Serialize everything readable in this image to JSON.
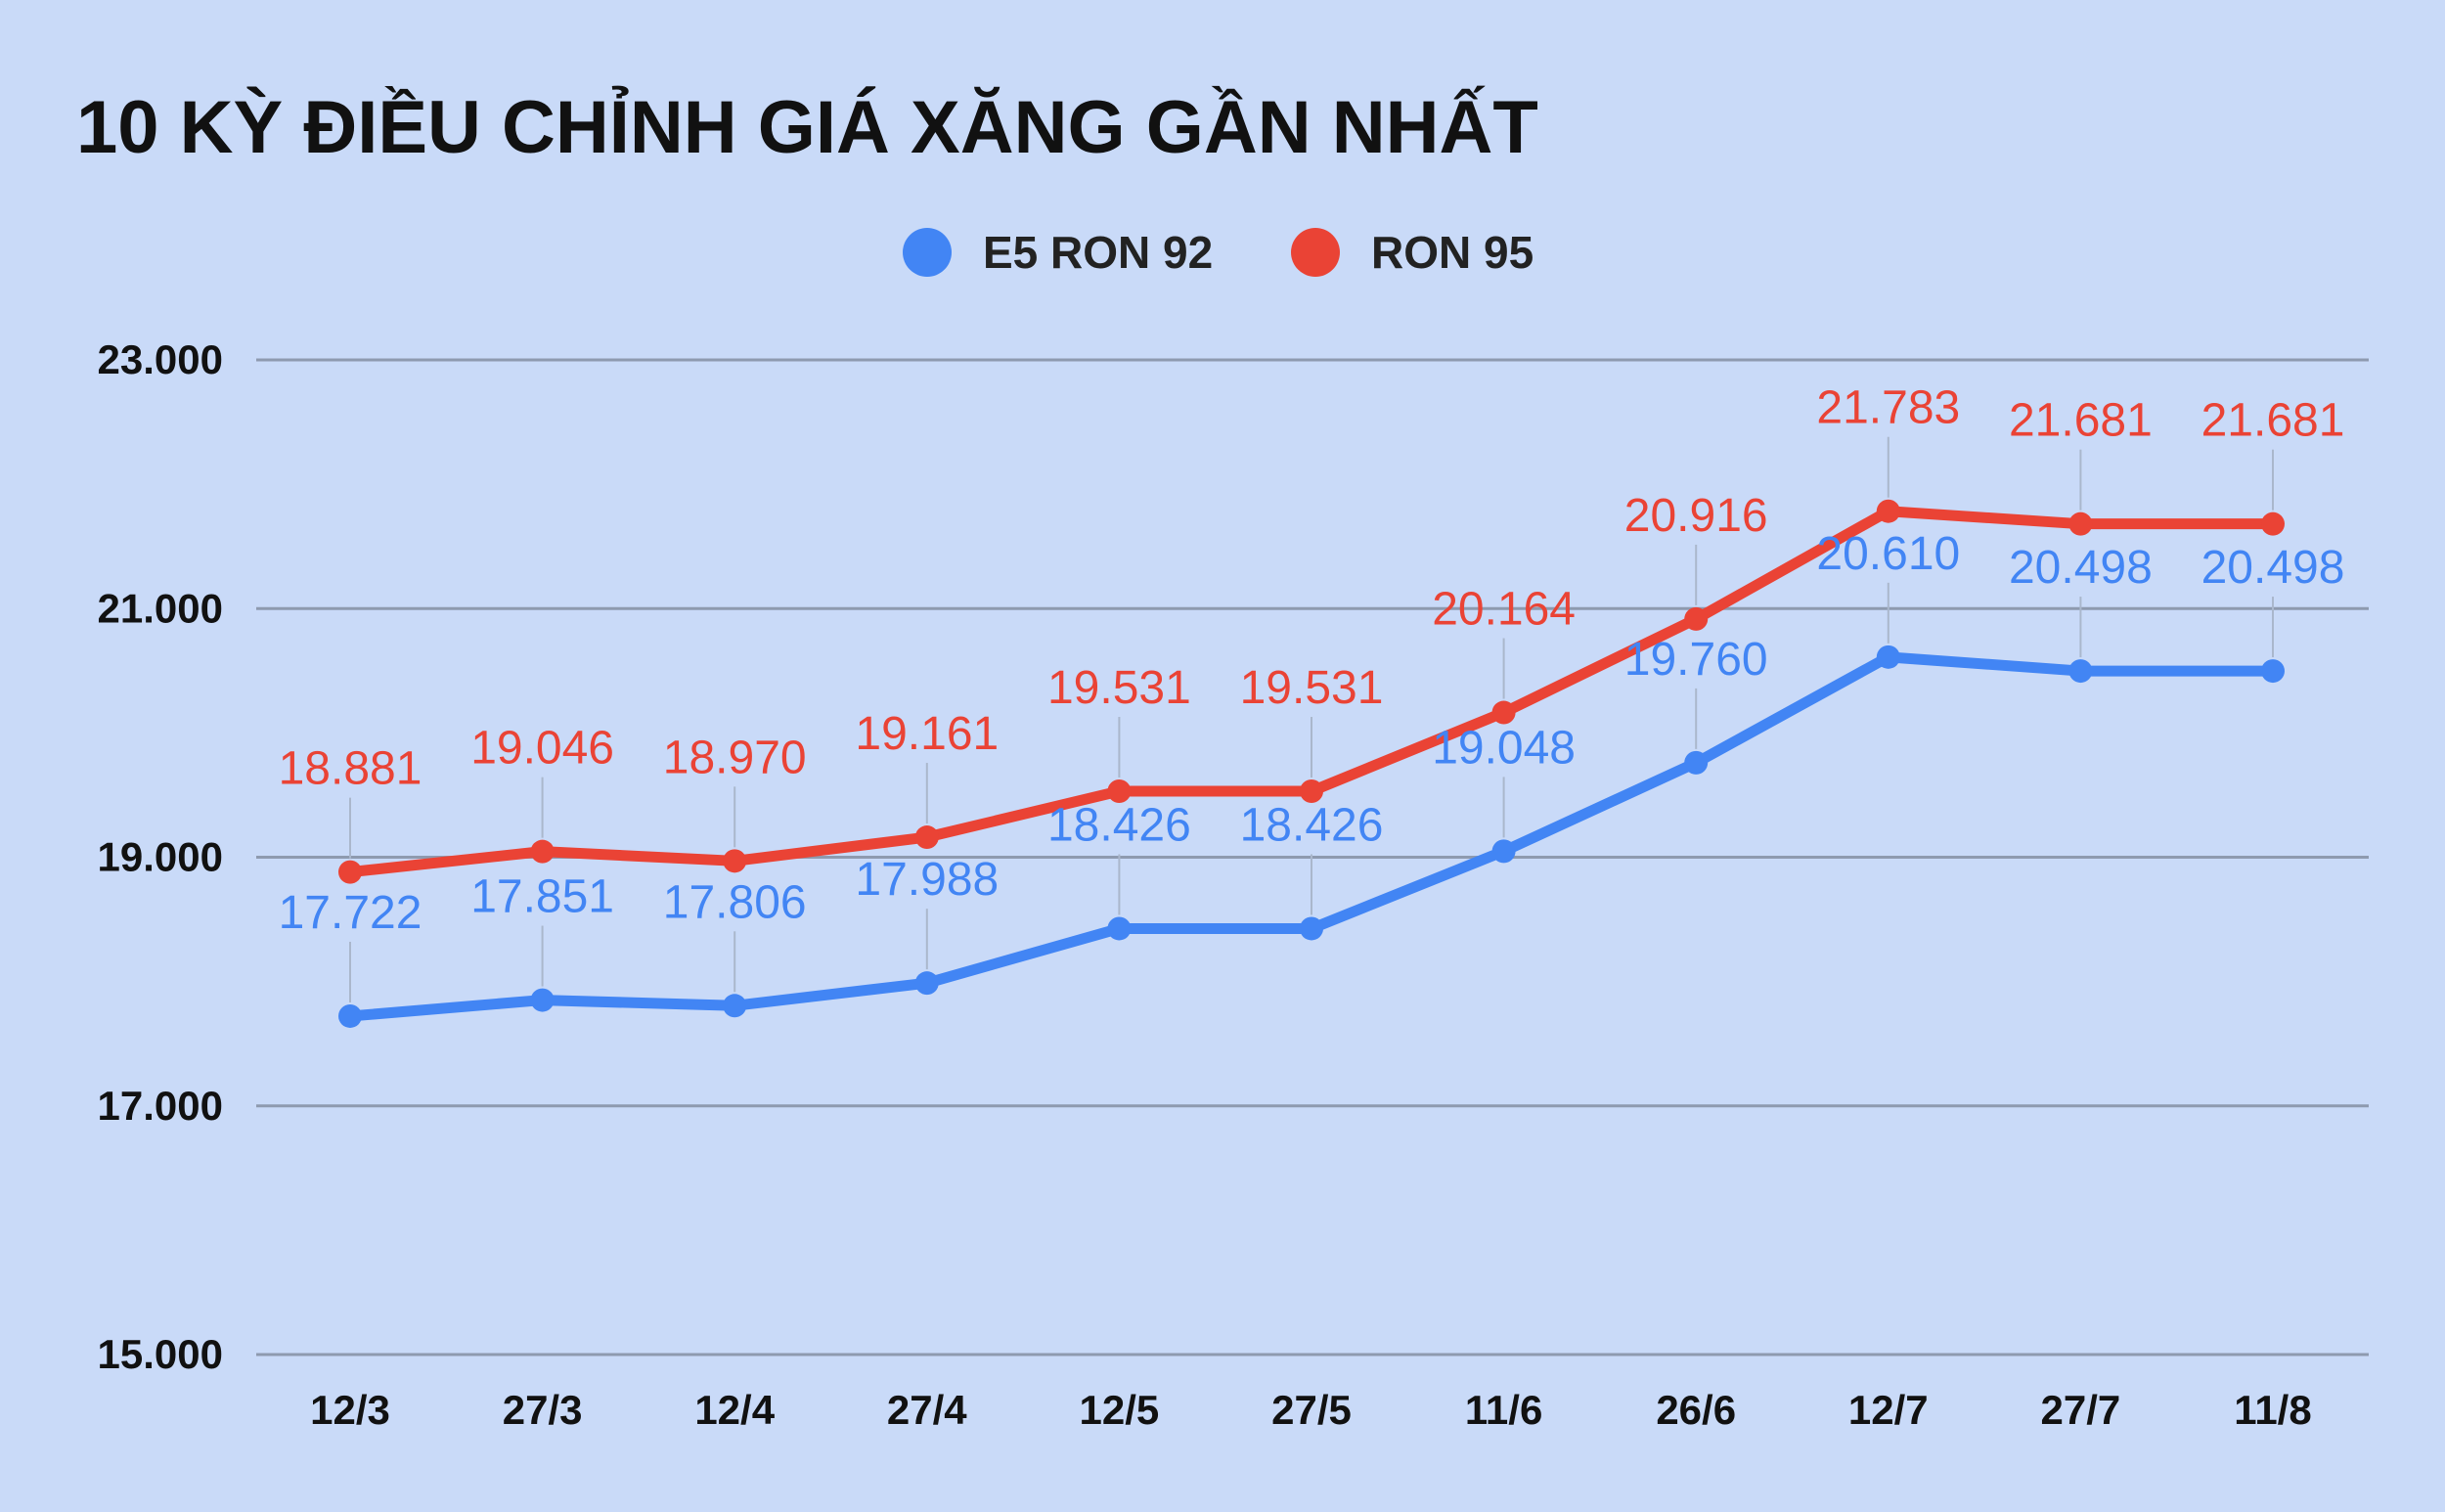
{
  "chart_data": {
    "type": "line",
    "title": "10 KỲ ĐIỀU CHỈNH GIÁ XĂNG GẦN NHẤT",
    "xlabel": "",
    "ylabel": "",
    "categories": [
      "12/3",
      "27/3",
      "12/4",
      "27/4",
      "12/5",
      "27/5",
      "11/6",
      "26/6",
      "12/7",
      "27/7",
      "11/8"
    ],
    "series": [
      {
        "name": "E5 RON 92",
        "color": "#4285f4",
        "values": [
          17722,
          17851,
          17806,
          17988,
          18426,
          18426,
          19048,
          19760,
          20610,
          20498,
          20498
        ],
        "labels": [
          "17.722",
          "17.851",
          "17.806",
          "17.988",
          "18.426",
          "18.426",
          "19.048",
          "19.760",
          "20.610",
          "20.498",
          "20.498"
        ]
      },
      {
        "name": "RON 95",
        "color": "#ea4335",
        "values": [
          18881,
          19046,
          18970,
          19161,
          19531,
          19531,
          20164,
          20916,
          21783,
          21681,
          21681
        ],
        "labels": [
          "18.881",
          "19.046",
          "18.970",
          "19.161",
          "19.531",
          "19.531",
          "20.164",
          "20.916",
          "21.783",
          "21.681",
          "21.681"
        ]
      }
    ],
    "yticks": [
      15000,
      17000,
      19000,
      21000,
      23000
    ],
    "ytick_labels": [
      "15.000",
      "17.000",
      "19.000",
      "21.000",
      "23.000"
    ],
    "ylim": [
      15000,
      23000
    ],
    "grid": true,
    "legend_position": "top-center"
  }
}
